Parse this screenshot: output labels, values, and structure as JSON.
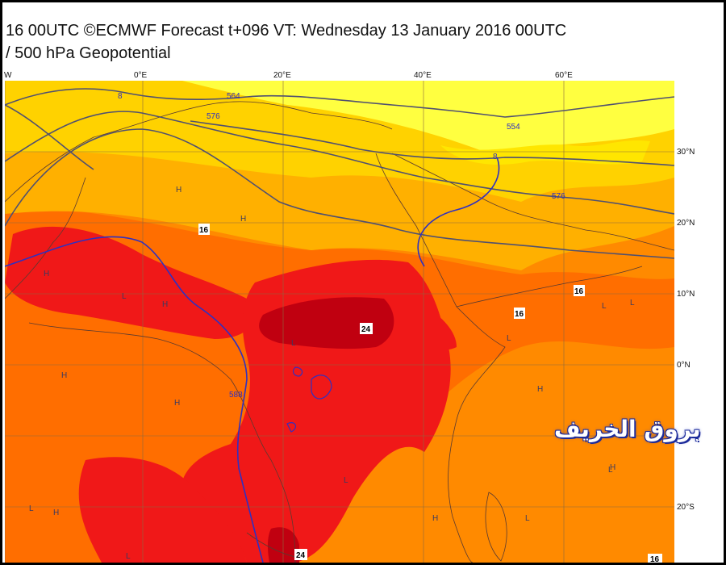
{
  "title": {
    "line1": "16 00UTC ©ECMWF Forecast t+096 VT: Wednesday 13 January 2016 00UTC",
    "line2": "/ 500 hPa Geopotential"
  },
  "axes": {
    "lon_labels": [
      "W",
      "0°E",
      "20°E",
      "40°E",
      "60°E"
    ],
    "lat_labels": [
      "30°N",
      "20°N",
      "10°N",
      "0°N",
      "20°S"
    ]
  },
  "contour_labels": {
    "geopotential": [
      "8",
      "564",
      "576",
      "554",
      "8",
      "576",
      "588"
    ],
    "temperature": [
      "16",
      "16",
      "16",
      "24",
      "24",
      "16"
    ]
  },
  "pressure_marks": [
    "H",
    "L"
  ],
  "watermark": "بروق الخريف",
  "colors": {
    "pale_yellow": "#ffff40",
    "yellow": "#ffd200",
    "amber": "#ffb000",
    "orange": "#ff8a00",
    "deep_orange": "#ff6000",
    "red": "#f01818",
    "dark_red": "#c00010",
    "contour_blue": "#3030c0",
    "contour_dark": "#505070"
  }
}
